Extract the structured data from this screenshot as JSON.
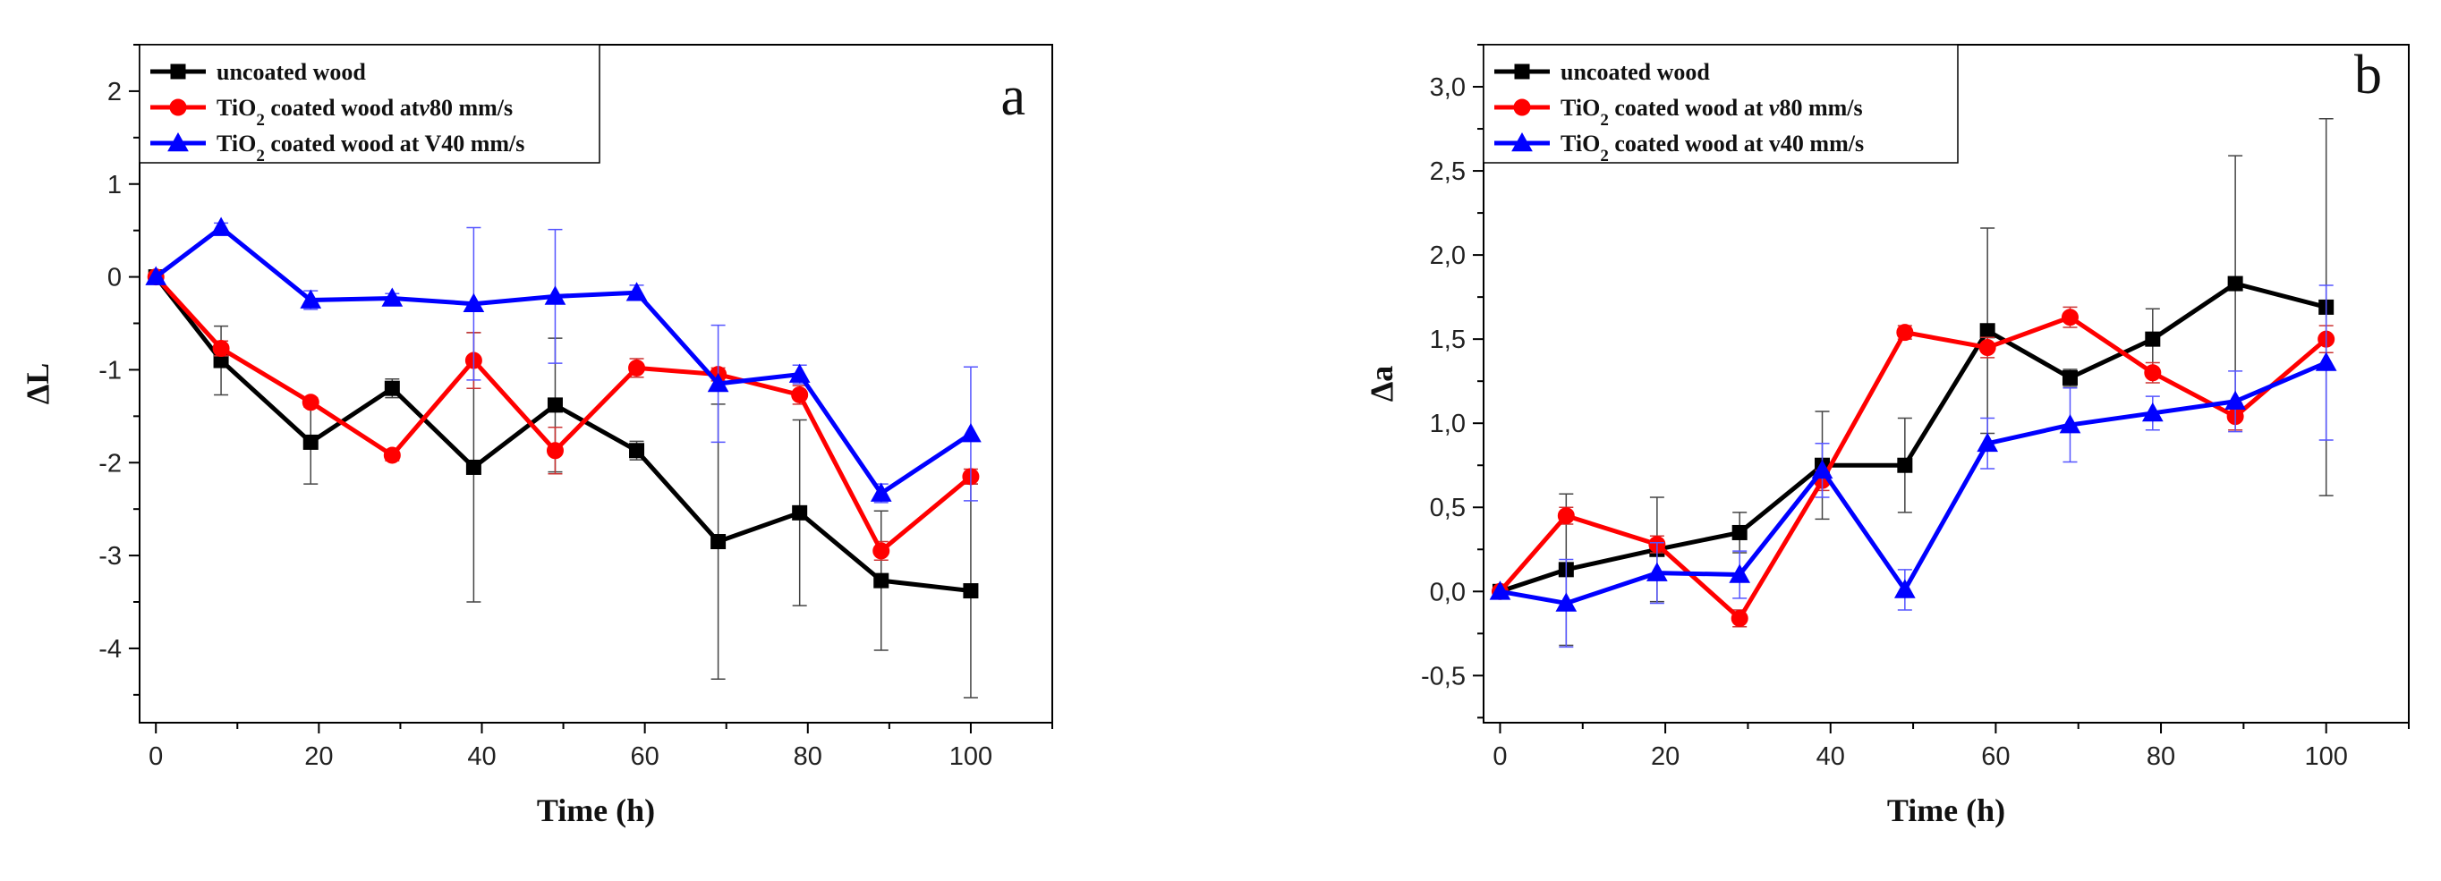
{
  "chart_data": [
    {
      "type": "line",
      "panel_label": "a",
      "xlabel": "Time (h)",
      "ylabel": "ΔL",
      "xlim": [
        -2,
        110
      ],
      "ylim": [
        -4.8,
        2.5
      ],
      "xticks": [
        0,
        20,
        40,
        60,
        80,
        100
      ],
      "xtick_labels": [
        "0",
        "20",
        "40",
        "60",
        "80",
        "100"
      ],
      "yticks": [
        2,
        1,
        0,
        -1,
        -2,
        -3,
        -4
      ],
      "ytick_labels": [
        "2",
        "1",
        "0",
        "-1",
        "-2",
        "-3",
        "-4"
      ],
      "legend_position": "top-left",
      "series": [
        {
          "name": "uncoated wood",
          "legend": {
            "pre": "uncoated wood",
            "sub": "",
            "post": "",
            "italic": "",
            "tail": ""
          },
          "color": "#000000",
          "marker": "square",
          "x": [
            0,
            8,
            19,
            29,
            39,
            49,
            59,
            69,
            79,
            89,
            100
          ],
          "y": [
            0,
            -0.9,
            -1.78,
            -1.2,
            -2.05,
            -1.38,
            -1.87,
            -2.85,
            -2.54,
            -3.27,
            -3.38
          ],
          "err": [
            0,
            0.37,
            0.45,
            0.1,
            1.45,
            0.72,
            0.1,
            1.48,
            1.0,
            0.75,
            1.15
          ]
        },
        {
          "name": "TiO2 coated wood atv80 mm/s",
          "legend": {
            "pre": "TiO",
            "sub": "2",
            "post": " coated wood at",
            "italic": "v",
            "tail": "80 mm/s"
          },
          "color": "#ff0000",
          "marker": "circle",
          "x": [
            0,
            8,
            19,
            29,
            39,
            49,
            59,
            69,
            79,
            89,
            100
          ],
          "y": [
            0,
            -0.77,
            -1.35,
            -1.92,
            -0.9,
            -1.87,
            -0.98,
            -1.05,
            -1.27,
            -2.95,
            -2.15
          ],
          "err": [
            0,
            0.08,
            0.05,
            0.06,
            0.3,
            0.25,
            0.1,
            0.07,
            0.1,
            0.1,
            0.08
          ]
        },
        {
          "name": "TiO2 coated wood at V40 mm/s",
          "legend": {
            "pre": "TiO",
            "sub": "2",
            "post": " coated wood at V40 mm/s",
            "italic": "",
            "tail": ""
          },
          "color": "#0000ff",
          "marker": "triangle",
          "x": [
            0,
            8,
            19,
            29,
            39,
            49,
            59,
            69,
            79,
            89,
            100
          ],
          "y": [
            0,
            0.53,
            -0.25,
            -0.23,
            -0.29,
            -0.21,
            -0.17,
            -1.15,
            -1.05,
            -2.33,
            -1.69
          ],
          "err": [
            0,
            0.05,
            0.1,
            0.05,
            0.82,
            0.72,
            0.08,
            0.63,
            0.1,
            0.1,
            0.72
          ]
        }
      ]
    },
    {
      "type": "line",
      "panel_label": "b",
      "xlabel": "Time (h)",
      "ylabel": "Δa",
      "xlim": [
        -2,
        110
      ],
      "ylim": [
        -0.78,
        3.25
      ],
      "xticks": [
        0,
        20,
        40,
        60,
        80,
        100
      ],
      "xtick_labels": [
        "0",
        "20",
        "40",
        "60",
        "80",
        "100"
      ],
      "yticks": [
        3.0,
        2.5,
        2.0,
        1.5,
        1.0,
        0.5,
        0.0,
        -0.5
      ],
      "ytick_labels": [
        "3,0",
        "2,5",
        "2,0",
        "1,5",
        "1,0",
        "0,5",
        "0,0",
        "-0,5"
      ],
      "legend_position": "top-left",
      "series": [
        {
          "name": "uncoated wood",
          "legend": {
            "pre": "uncoated wood",
            "sub": "",
            "post": "",
            "italic": "",
            "tail": ""
          },
          "color": "#000000",
          "marker": "square",
          "x": [
            0,
            8,
            19,
            29,
            39,
            49,
            59,
            69,
            79,
            89,
            100
          ],
          "y": [
            0,
            0.13,
            0.25,
            0.35,
            0.75,
            0.75,
            1.55,
            1.27,
            1.5,
            1.83,
            1.69
          ],
          "err": [
            0,
            0.45,
            0.31,
            0.12,
            0.32,
            0.28,
            0.61,
            0.05,
            0.18,
            0.76,
            1.12
          ]
        },
        {
          "name": "TiO2 coated wood at v80 mm/s",
          "legend": {
            "pre": "TiO",
            "sub": "2",
            "post": " coated wood at ",
            "italic": "v",
            "tail": "80 mm/s"
          },
          "color": "#ff0000",
          "marker": "circle",
          "x": [
            0,
            8,
            19,
            29,
            39,
            49,
            59,
            69,
            79,
            89,
            100
          ],
          "y": [
            0,
            0.45,
            0.28,
            -0.16,
            0.66,
            1.54,
            1.45,
            1.63,
            1.3,
            1.04,
            1.5
          ],
          "err": [
            0,
            0.05,
            0.05,
            0.05,
            0.06,
            0.04,
            0.06,
            0.06,
            0.06,
            0.08,
            0.08
          ]
        },
        {
          "name": "TiO2 coated wood at v40 mm/s",
          "legend": {
            "pre": "TiO",
            "sub": "2",
            "post": " coated wood at v40 mm/s",
            "italic": "",
            "tail": ""
          },
          "color": "#0000ff",
          "marker": "triangle",
          "x": [
            0,
            8,
            19,
            29,
            39,
            49,
            59,
            69,
            79,
            89,
            100
          ],
          "y": [
            0,
            -0.07,
            0.11,
            0.1,
            0.72,
            0.01,
            0.88,
            0.99,
            1.06,
            1.13,
            1.36
          ],
          "err": [
            0,
            0.26,
            0.18,
            0.14,
            0.16,
            0.12,
            0.15,
            0.22,
            0.1,
            0.18,
            0.46
          ]
        }
      ]
    }
  ]
}
